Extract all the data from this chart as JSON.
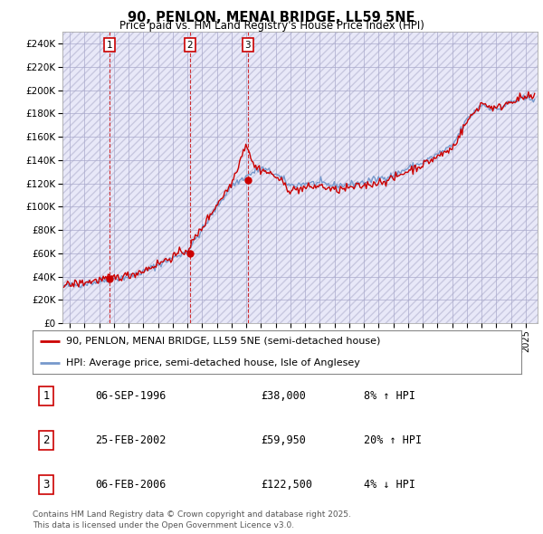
{
  "title": "90, PENLON, MENAI BRIDGE, LL59 5NE",
  "subtitle": "Price paid vs. HM Land Registry's House Price Index (HPI)",
  "ylabel_ticks": [
    "£0",
    "£20K",
    "£40K",
    "£60K",
    "£80K",
    "£100K",
    "£120K",
    "£140K",
    "£160K",
    "£180K",
    "£200K",
    "£220K",
    "£240K"
  ],
  "ytick_values": [
    0,
    20000,
    40000,
    60000,
    80000,
    100000,
    120000,
    140000,
    160000,
    180000,
    200000,
    220000,
    240000
  ],
  "ylim": [
    0,
    250000
  ],
  "xlim_start": 1993.5,
  "xlim_end": 2025.8,
  "purchases": [
    {
      "num": 1,
      "date": "06-SEP-1996",
      "price": 38000,
      "year": 1996.69,
      "pct": "8%",
      "dir": "↑"
    },
    {
      "num": 2,
      "date": "25-FEB-2002",
      "price": 59950,
      "year": 2002.15,
      "pct": "20%",
      "dir": "↑"
    },
    {
      "num": 3,
      "date": "06-FEB-2006",
      "price": 122500,
      "year": 2006.1,
      "pct": "4%",
      "dir": "↓"
    }
  ],
  "legend_label_red": "90, PENLON, MENAI BRIDGE, LL59 5NE (semi-detached house)",
  "legend_label_blue": "HPI: Average price, semi-detached house, Isle of Anglesey",
  "footnote": "Contains HM Land Registry data © Crown copyright and database right 2025.\nThis data is licensed under the Open Government Licence v3.0.",
  "line_color_red": "#cc0000",
  "line_color_blue": "#7799cc",
  "grid_color": "#aaaacc",
  "bg_color": "#e8e8f8",
  "plot_bg": "#ffffff",
  "label_box_color": "#cc0000",
  "hpi_anchors_x": [
    1993,
    1994,
    1995,
    1996,
    1997,
    1998,
    1999,
    2000,
    2001,
    2002,
    2003,
    2004,
    2005,
    2006,
    2007,
    2008,
    2009,
    2010,
    2011,
    2012,
    2013,
    2014,
    2015,
    2016,
    2017,
    2018,
    2019,
    2020,
    2021,
    2022,
    2023,
    2024,
    2025
  ],
  "hpi_anchors_y": [
    31000,
    32000,
    34000,
    36000,
    38000,
    40000,
    44000,
    50000,
    56000,
    62000,
    80000,
    100000,
    118000,
    126000,
    133000,
    128000,
    118000,
    120000,
    120000,
    118000,
    119000,
    121000,
    124000,
    127000,
    133000,
    138000,
    145000,
    152000,
    175000,
    188000,
    183000,
    190000,
    193000
  ],
  "pp_anchors_x": [
    1993,
    1994,
    1995,
    1996,
    1997,
    1998,
    1999,
    2000,
    2001,
    2002,
    2003,
    2004,
    2005,
    2006,
    2006.5,
    2007,
    2008,
    2009,
    2010,
    2011,
    2012,
    2013,
    2014,
    2015,
    2016,
    2017,
    2018,
    2019,
    2020,
    2021,
    2022,
    2023,
    2024,
    2025
  ],
  "pp_anchors_y": [
    31000,
    33000,
    35000,
    37000,
    39000,
    41000,
    45000,
    51000,
    57000,
    63000,
    82000,
    102000,
    120000,
    155000,
    135000,
    132000,
    126000,
    114000,
    116000,
    118000,
    114000,
    116000,
    118000,
    121000,
    124000,
    131000,
    136000,
    143000,
    150000,
    173000,
    189000,
    184000,
    191000,
    194000
  ]
}
